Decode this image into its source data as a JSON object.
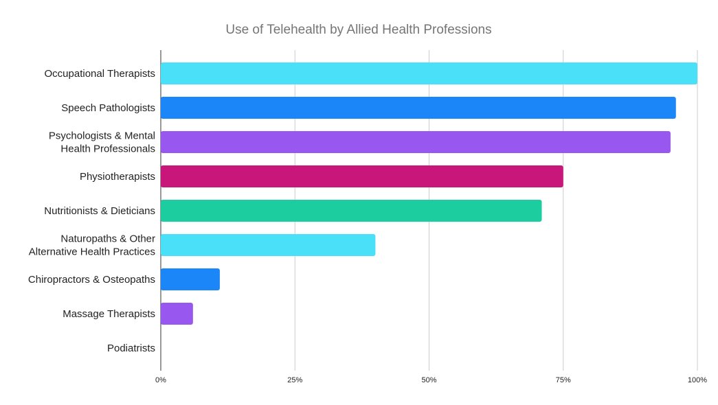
{
  "chart_data": {
    "type": "bar",
    "orientation": "horizontal",
    "title": "Use of Telehealth by Allied Health Professions",
    "categories": [
      [
        "Occupational Therapists"
      ],
      [
        "Speech Pathologists"
      ],
      [
        "Psychologists & Mental",
        "Health Professionals"
      ],
      [
        "Physiotherapists"
      ],
      [
        "Nutritionists & Dieticians"
      ],
      [
        "Naturopaths & Other",
        "Alternative Health Practices"
      ],
      [
        "Chiropractors & Osteopaths"
      ],
      [
        "Massage Therapists"
      ],
      [
        "Podiatrists"
      ]
    ],
    "values": [
      100,
      96,
      95,
      75,
      71,
      40,
      11,
      6,
      0
    ],
    "colors": [
      "#4ae0f8",
      "#1a86f7",
      "#9858ef",
      "#c8167a",
      "#1ccda0",
      "#4ae0f8",
      "#1a86f7",
      "#9858ef",
      "#c8167a"
    ],
    "xlim": [
      0,
      100
    ],
    "xticks": [
      0,
      25,
      50,
      75,
      100
    ],
    "xtick_labels": [
      "0%",
      "25%",
      "50%",
      "75%",
      "100%"
    ],
    "xlabel": "",
    "ylabel": "",
    "grid": "vertical",
    "legend": "none"
  }
}
